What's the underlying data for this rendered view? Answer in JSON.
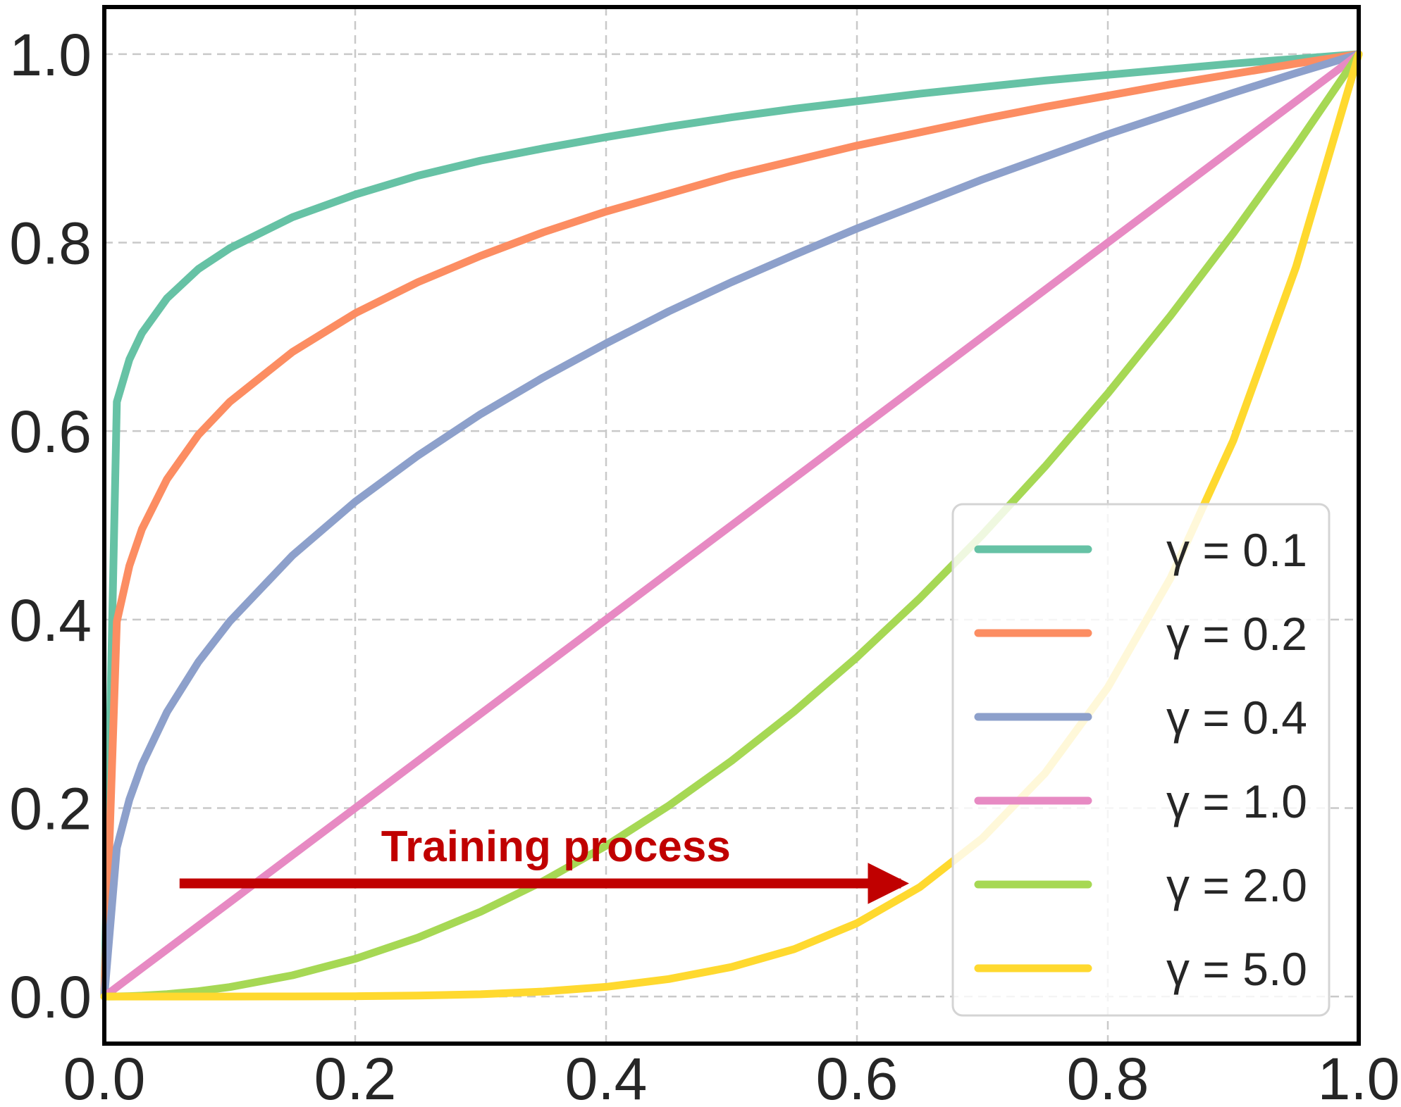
{
  "chart_data": {
    "type": "line",
    "title": "",
    "xlabel": "",
    "ylabel": "",
    "xlim": [
      0.0,
      1.0
    ],
    "ylim": [
      -0.05,
      1.05
    ],
    "grid": true,
    "legend_position": "lower-right",
    "x_ticks": [
      "0.0",
      "0.2",
      "0.4",
      "0.6",
      "0.8",
      "1.0"
    ],
    "y_ticks": [
      "0.0",
      "0.2",
      "0.4",
      "0.6",
      "0.8",
      "1.0"
    ],
    "x_tick_values": [
      0.0,
      0.2,
      0.4,
      0.6,
      0.8,
      1.0
    ],
    "y_tick_values": [
      0.0,
      0.2,
      0.4,
      0.6,
      0.8,
      1.0
    ],
    "x": [
      0.0,
      0.01,
      0.02,
      0.03,
      0.05,
      0.075,
      0.1,
      0.15,
      0.2,
      0.25,
      0.3,
      0.35,
      0.4,
      0.45,
      0.5,
      0.55,
      0.6,
      0.65,
      0.7,
      0.75,
      0.8,
      0.85,
      0.9,
      0.95,
      1.0
    ],
    "series": [
      {
        "name": "γ = 0.1",
        "color": "#66c2a5",
        "values": [
          0.0,
          0.631,
          0.676,
          0.704,
          0.741,
          0.772,
          0.794,
          0.827,
          0.851,
          0.871,
          0.887,
          0.9,
          0.912,
          0.923,
          0.933,
          0.942,
          0.95,
          0.958,
          0.965,
          0.972,
          0.978,
          0.984,
          0.99,
          0.995,
          1.0
        ]
      },
      {
        "name": "γ = 0.2",
        "color": "#fc8d62",
        "values": [
          0.0,
          0.398,
          0.457,
          0.496,
          0.549,
          0.596,
          0.631,
          0.684,
          0.725,
          0.758,
          0.786,
          0.811,
          0.833,
          0.852,
          0.871,
          0.887,
          0.903,
          0.917,
          0.931,
          0.944,
          0.956,
          0.968,
          0.979,
          0.99,
          1.0
        ]
      },
      {
        "name": "γ = 0.4",
        "color": "#8da0cb",
        "values": [
          0.0,
          0.158,
          0.209,
          0.246,
          0.302,
          0.355,
          0.398,
          0.468,
          0.525,
          0.574,
          0.618,
          0.657,
          0.693,
          0.727,
          0.758,
          0.787,
          0.815,
          0.841,
          0.867,
          0.891,
          0.915,
          0.937,
          0.959,
          0.98,
          1.0
        ]
      },
      {
        "name": "γ = 1.0",
        "color": "#e78ac3",
        "values": [
          0.0,
          0.01,
          0.02,
          0.03,
          0.05,
          0.075,
          0.1,
          0.15,
          0.2,
          0.25,
          0.3,
          0.35,
          0.4,
          0.45,
          0.5,
          0.55,
          0.6,
          0.65,
          0.7,
          0.75,
          0.8,
          0.85,
          0.9,
          0.95,
          1.0
        ]
      },
      {
        "name": "γ = 2.0",
        "color": "#a6d854",
        "values": [
          0.0,
          0.0001,
          0.0004,
          0.0009,
          0.0025,
          0.0056,
          0.01,
          0.0225,
          0.04,
          0.0625,
          0.09,
          0.1225,
          0.16,
          0.2025,
          0.25,
          0.3025,
          0.36,
          0.4225,
          0.49,
          0.5625,
          0.64,
          0.7225,
          0.81,
          0.9025,
          1.0
        ]
      },
      {
        "name": "γ = 5.0",
        "color": "#ffd92f",
        "values": [
          0.0,
          0.0,
          0.0,
          0.0,
          0.0,
          0.0,
          0.0,
          0.0001,
          0.0003,
          0.001,
          0.0024,
          0.0053,
          0.0102,
          0.0185,
          0.0313,
          0.0503,
          0.0778,
          0.116,
          0.168,
          0.237,
          0.328,
          0.444,
          0.59,
          0.774,
          1.0
        ]
      }
    ],
    "annotations": [
      {
        "text": "Training process",
        "color": "#c00000",
        "arrow_from": [
          0.06,
          0.12
        ],
        "arrow_to": [
          0.635,
          0.12
        ],
        "text_at": [
          0.36,
          0.16
        ]
      }
    ]
  }
}
